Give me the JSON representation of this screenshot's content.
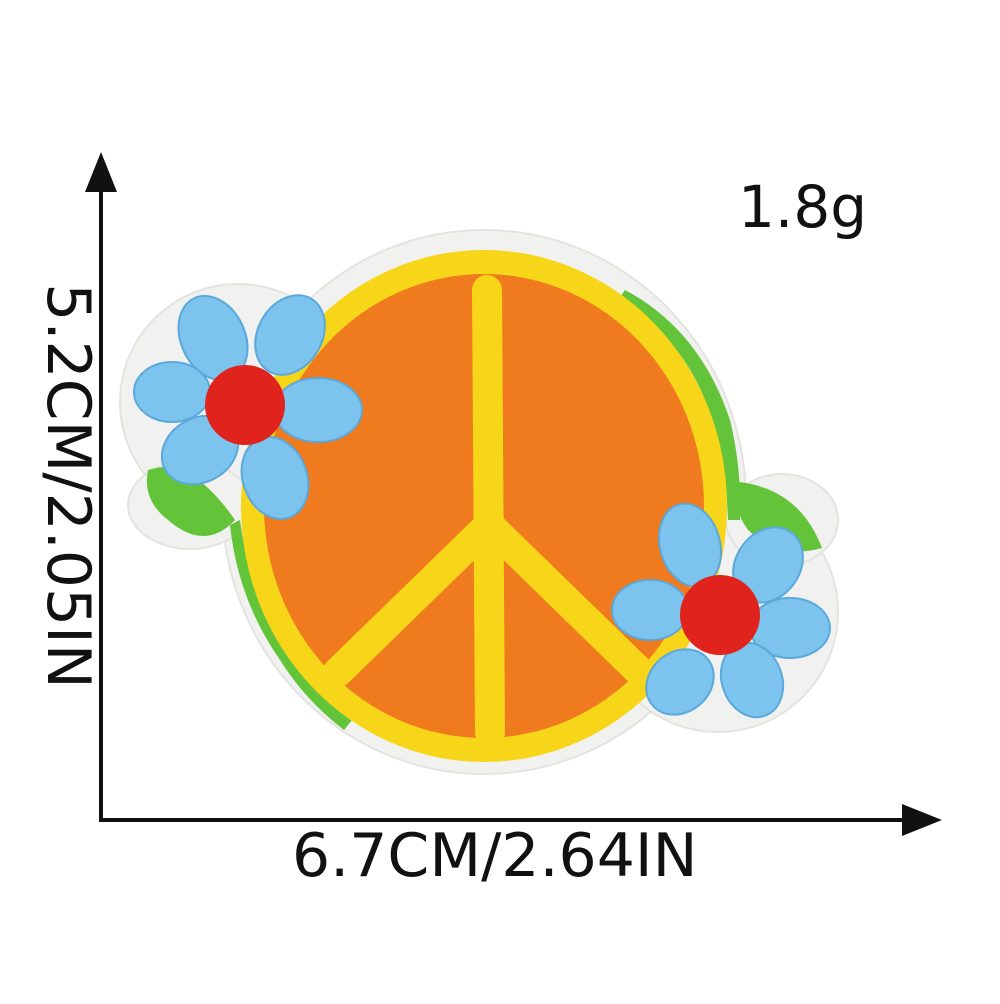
{
  "weight": "1.8g",
  "dimensions": {
    "width_label": "6.7CM/2.64IN",
    "height_label": "5.2CM/2.05IN"
  },
  "patch": {
    "subject": "peace-sign",
    "colors": {
      "disc": "#f07a1e",
      "rim": "#f7d518",
      "symbol": "#f7d518",
      "leaf": "#63c43a",
      "petal": "#7cc3ee",
      "flower_center": "#e0231c",
      "backing": "#f1f1ef"
    },
    "flowers": 2
  },
  "colors": {
    "axis": "#111111",
    "text": "#111111",
    "background": "#ffffff"
  }
}
